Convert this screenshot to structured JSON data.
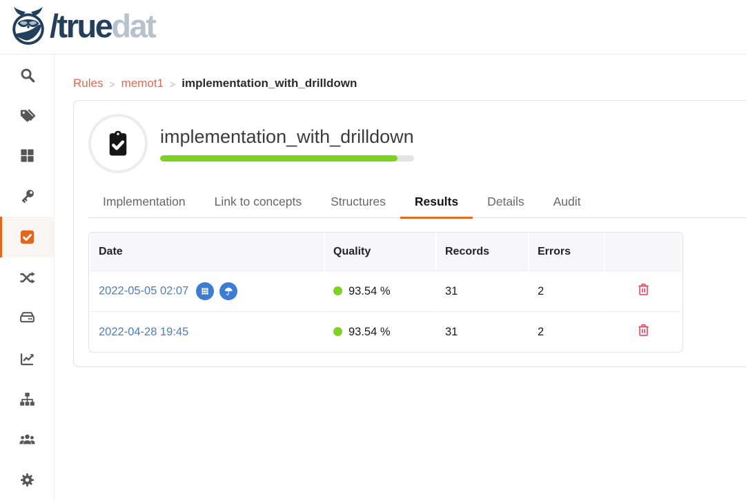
{
  "colors": {
    "accent_orange": "#e56a24",
    "sidebar_active_orange": "#e2661d",
    "breadcrumb_link_orange": "#e8654e",
    "link_blue": "#4d7ec0",
    "action_button_blue": "#3d7cd3",
    "success_green": "#7ed321",
    "danger_red": "#e64862",
    "brand_navy": "#22405c",
    "brand_gray": "#b6c2cc"
  },
  "header": {
    "brand_primary": "/true",
    "brand_secondary": "dat",
    "logo_icon": "owl-logo-icon"
  },
  "sidebar": {
    "items": [
      {
        "icon": "search-icon",
        "active": false
      },
      {
        "icon": "tags-icon",
        "active": false
      },
      {
        "icon": "grid-icon",
        "active": false
      },
      {
        "icon": "key-icon",
        "active": false
      },
      {
        "icon": "check-square-icon",
        "active": true
      },
      {
        "icon": "shuffle-icon",
        "active": false
      },
      {
        "icon": "hard-drive-icon",
        "active": false
      },
      {
        "icon": "chart-line-icon",
        "active": false
      },
      {
        "icon": "sitemap-icon",
        "active": false
      },
      {
        "icon": "users-icon",
        "active": false
      },
      {
        "icon": "gear-icon",
        "active": false
      }
    ]
  },
  "breadcrumb": {
    "separator": ">",
    "items": [
      {
        "label": "Rules",
        "current": false
      },
      {
        "label": "memot1",
        "current": false
      },
      {
        "label": "implementation_with_drilldown",
        "current": true
      }
    ]
  },
  "rule": {
    "title": "implementation_with_drilldown",
    "quality_percent": 93.54
  },
  "tabs": {
    "items": [
      {
        "label": "Implementation",
        "active": false
      },
      {
        "label": "Link to concepts",
        "active": false
      },
      {
        "label": "Structures",
        "active": false
      },
      {
        "label": "Results",
        "active": true
      },
      {
        "label": "Details",
        "active": false
      },
      {
        "label": "Audit",
        "active": false
      }
    ]
  },
  "results_table": {
    "columns": [
      "Date",
      "Quality",
      "Records",
      "Errors",
      ""
    ],
    "rows": [
      {
        "date": "2022-05-05 02:07",
        "quality": "93.54 %",
        "records": "31",
        "errors": "2",
        "action_icons": [
          "grid-circle-icon",
          "umbrella-circle-icon"
        ],
        "delete_icon": "trash-icon"
      },
      {
        "date": "2022-04-28 19:45",
        "quality": "93.54 %",
        "records": "31",
        "errors": "2",
        "action_icons": [],
        "delete_icon": "trash-icon"
      }
    ]
  }
}
